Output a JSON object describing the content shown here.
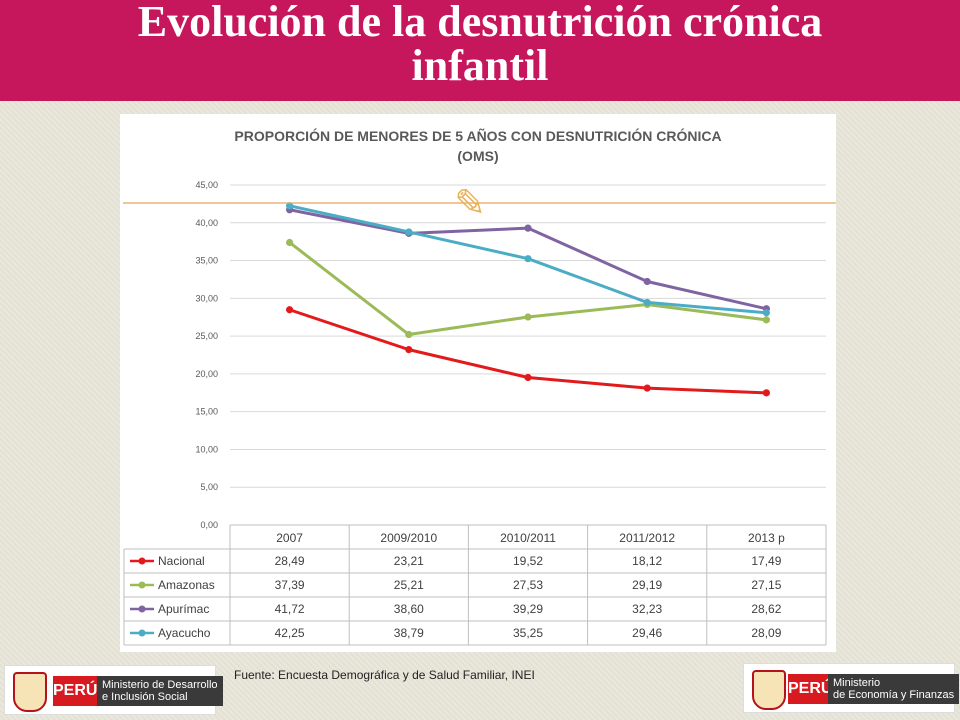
{
  "header": {
    "title_line1": "Evolución de la desnutrición crónica",
    "title_line2": "infantil"
  },
  "chart_data": {
    "type": "line",
    "title_line1": "PROPORCIÓN DE MENORES DE 5 AÑOS CON DESNUTRICIÓN CRÓNICA",
    "title_line2": "(OMS)",
    "categories": [
      "2007",
      "2009/2010",
      "2010/2011",
      "2011/2012",
      "2013 p"
    ],
    "ylim": [
      0,
      45
    ],
    "yticks": [
      "0,00",
      "5,00",
      "10,00",
      "15,00",
      "20,00",
      "25,00",
      "30,00",
      "35,00",
      "40,00",
      "45,00"
    ],
    "grid": true,
    "data_table": true,
    "series": [
      {
        "name": "Nacional",
        "color": "#e31a1c",
        "values": [
          28.49,
          23.21,
          19.52,
          18.12,
          17.49
        ],
        "labels": [
          "28,49",
          "23,21",
          "19,52",
          "18,12",
          "17,49"
        ]
      },
      {
        "name": "Amazonas",
        "color": "#9bbb59",
        "values": [
          37.39,
          25.21,
          27.53,
          29.19,
          27.15
        ],
        "labels": [
          "37,39",
          "25,21",
          "27,53",
          "29,19",
          "27,15"
        ]
      },
      {
        "name": "Apurímac",
        "color": "#8064a2",
        "values": [
          41.72,
          38.6,
          39.29,
          32.23,
          28.62
        ],
        "labels": [
          "41,72",
          "38,60",
          "39,29",
          "32,23",
          "28,62"
        ]
      },
      {
        "name": "Ayacucho",
        "color": "#4bacc6",
        "values": [
          42.25,
          38.79,
          35.25,
          29.46,
          28.09
        ],
        "labels": [
          "42,25",
          "38,79",
          "35,25",
          "29,46",
          "28,09"
        ]
      }
    ]
  },
  "ornament": {
    "glyph": "✎",
    "color": "#e8b25a"
  },
  "footer": {
    "source": "Fuente: Encuesta Demográfica y de Salud Familiar, INEI"
  },
  "logos": {
    "left": {
      "peru": "PERÚ",
      "line1": "Ministerio de Desarrollo",
      "line2": "e Inclusión Social"
    },
    "right": {
      "peru": "PERÚ",
      "line1": "Ministerio",
      "line2": "de Economía y Finanzas"
    }
  }
}
